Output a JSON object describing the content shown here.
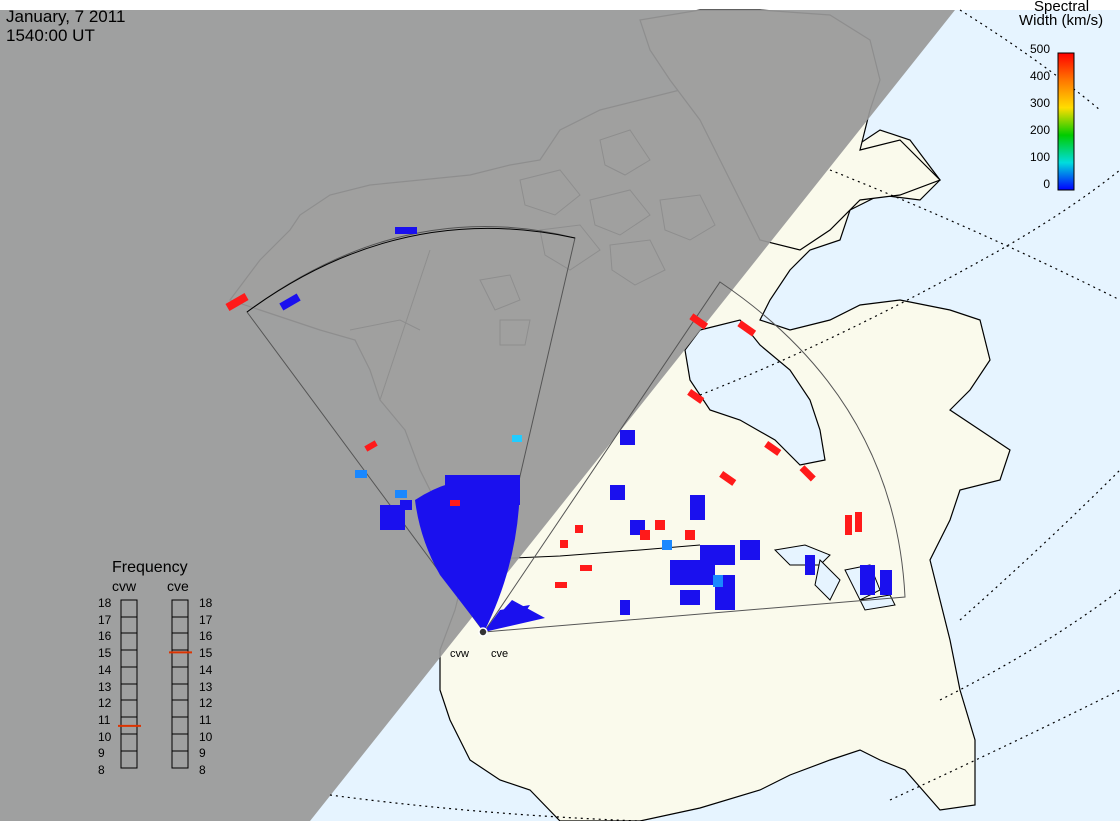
{
  "header": {
    "date": "January, 7 2011",
    "time": "1540:00 UT"
  },
  "colorbar": {
    "title_line1": "Spectral",
    "title_line2": "Width (km/s)",
    "ticks": [
      "500",
      "400",
      "300",
      "200",
      "100",
      "0"
    ],
    "colors": [
      "#ff0000",
      "#ff7700",
      "#ffdd00",
      "#00cc00",
      "#00dddd",
      "#0000ff"
    ]
  },
  "frequency": {
    "title": "Frequency",
    "cvw_label": "cvw",
    "cve_label": "cve",
    "scale": [
      "18",
      "17",
      "16",
      "15",
      "14",
      "13",
      "12",
      "11",
      "10",
      "9",
      "8"
    ],
    "cvw_value": 10.7,
    "cve_value": 15.1,
    "marker_color": "#dd3300"
  },
  "radars": {
    "west": "cvw",
    "east": "cve"
  },
  "colors": {
    "night": "#999999",
    "ocean": "#e6f4ff",
    "land": "#fafaec",
    "scatter_low": "#1a10ee",
    "scatter_high": "#ff1a1a"
  }
}
